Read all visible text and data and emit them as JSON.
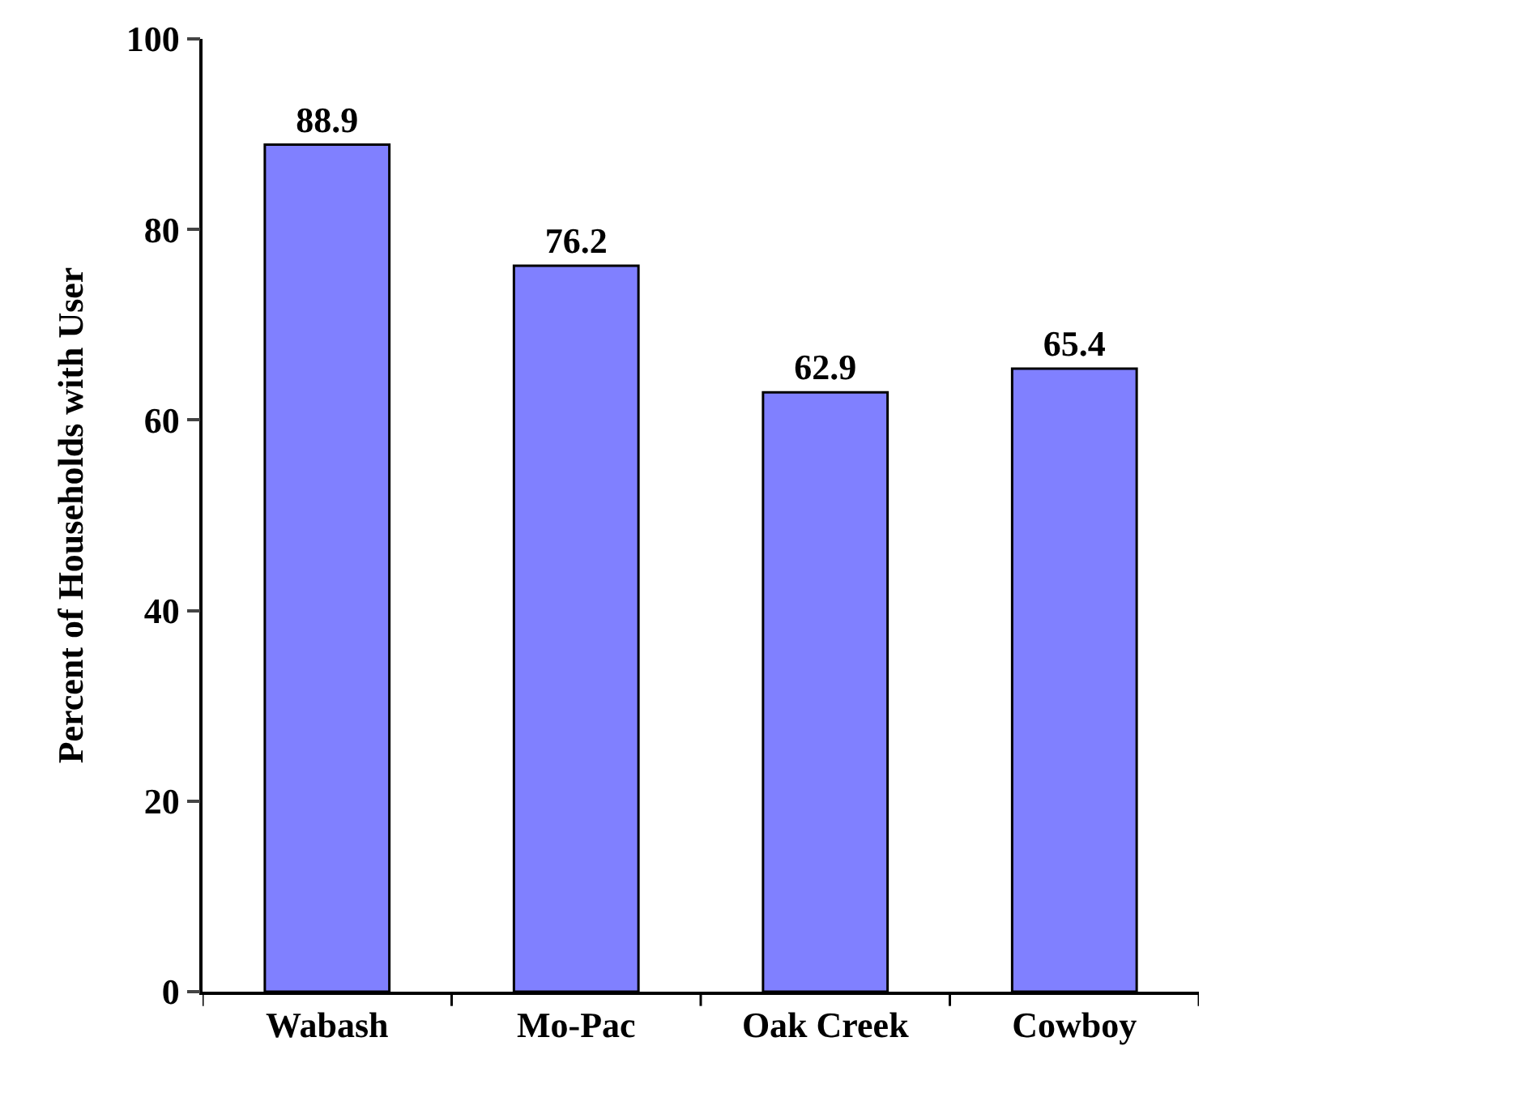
{
  "chart_data": {
    "type": "bar",
    "ylabel": "Percent of Households with User",
    "categories": [
      "Wabash",
      "Mo-Pac",
      "Oak Creek",
      "Cowboy"
    ],
    "values": [
      88.9,
      76.2,
      62.9,
      65.4
    ],
    "color": "#8080ff",
    "ylim": [
      0,
      100
    ],
    "yticks": [
      0,
      20,
      40,
      60,
      80,
      100
    ],
    "data_labels": true
  }
}
